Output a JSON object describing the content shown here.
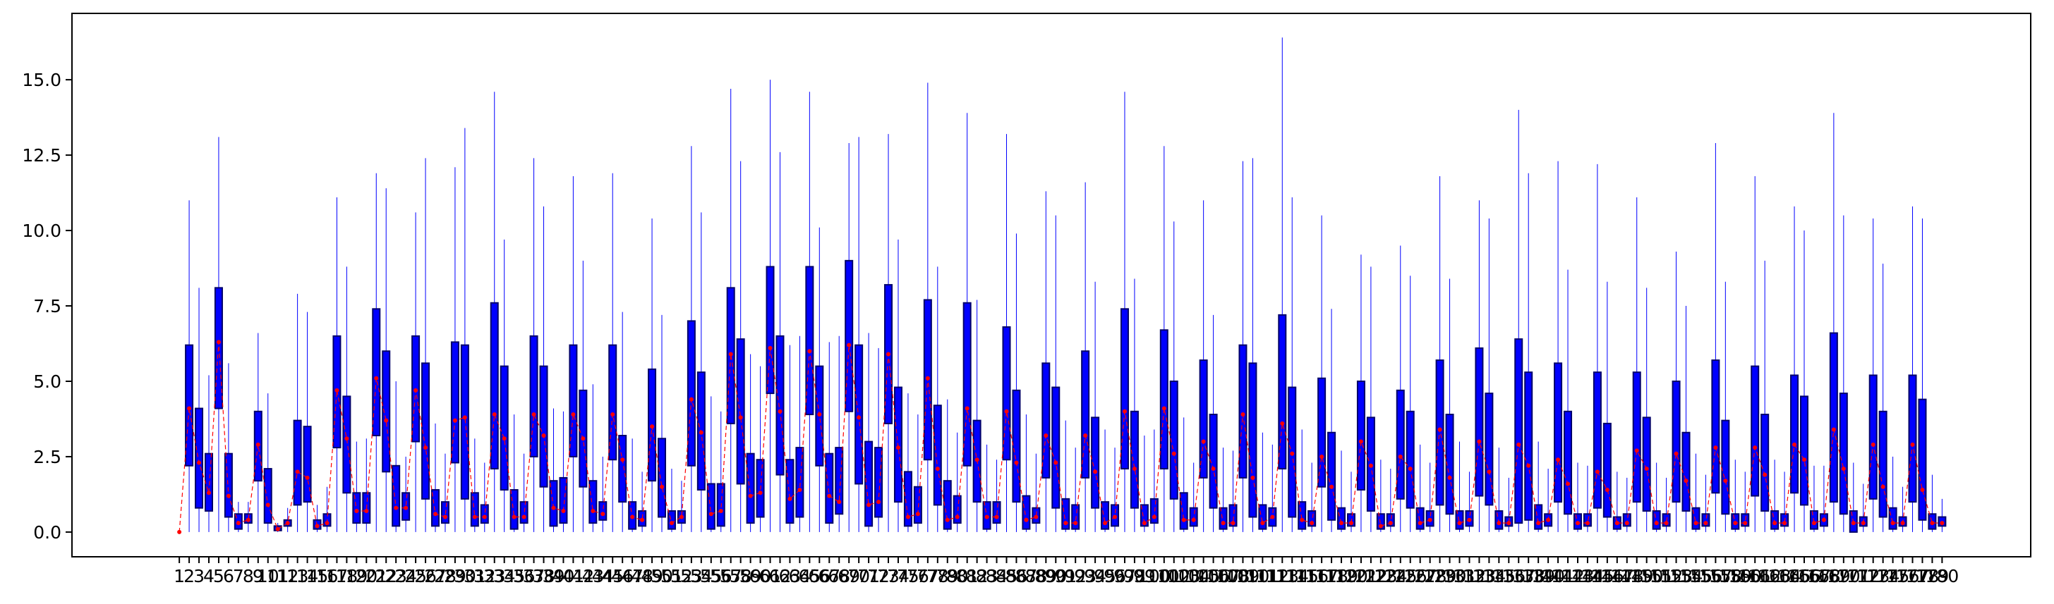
{
  "chart_data": {
    "type": "box",
    "x": [
      1,
      2,
      3,
      4,
      5,
      6,
      7,
      8,
      9,
      10,
      11,
      12,
      13,
      14,
      15,
      16,
      17,
      18,
      19,
      20,
      21,
      22,
      23,
      24,
      25,
      26,
      27,
      28,
      29,
      30,
      31,
      32,
      33,
      34,
      35,
      36,
      37,
      38,
      39,
      40,
      41,
      42,
      43,
      44,
      45,
      46,
      47,
      48,
      49,
      50,
      51,
      52,
      53,
      54,
      55,
      56,
      57,
      58,
      59,
      60,
      61,
      62,
      63,
      64,
      65,
      66,
      67,
      68,
      69,
      70,
      71,
      72,
      73,
      74,
      75,
      76,
      77,
      78,
      79,
      80,
      81,
      82,
      83,
      84,
      85,
      86,
      87,
      88,
      89,
      90,
      91,
      92,
      93,
      94,
      95,
      96,
      97,
      98,
      99,
      100,
      101,
      102,
      103,
      104,
      105,
      106,
      107,
      108,
      109,
      110,
      111,
      112,
      113,
      114,
      115,
      116,
      117,
      118,
      119,
      120,
      121,
      122,
      123,
      124,
      125,
      126,
      127,
      128,
      129,
      130,
      131,
      132,
      133,
      134,
      135,
      136,
      137,
      138,
      139,
      140,
      141,
      142,
      143,
      144,
      145,
      146,
      147,
      148,
      149,
      150,
      151,
      152,
      153,
      154,
      155,
      156,
      157,
      158,
      159,
      160,
      161,
      162,
      163,
      164,
      165,
      166,
      167,
      168,
      169,
      170,
      171,
      172,
      173,
      174,
      175,
      176,
      177,
      178,
      179,
      180
    ],
    "whislo": [
      0,
      0,
      0,
      0,
      0,
      0,
      0,
      0,
      0,
      0,
      0,
      0,
      0,
      0,
      0,
      0,
      0,
      0,
      0,
      0,
      0,
      0,
      0,
      0,
      0,
      0,
      0,
      0,
      0,
      0,
      0,
      0,
      0,
      0,
      0,
      0,
      0,
      0,
      0,
      0,
      0,
      0,
      0,
      0,
      0,
      0,
      0,
      0,
      0,
      0,
      0,
      0,
      0,
      0,
      0,
      0,
      0,
      0,
      0,
      0,
      0,
      0,
      0,
      0,
      0,
      0,
      0,
      0,
      0,
      0,
      0,
      0,
      0,
      0,
      0,
      0,
      0,
      0,
      0,
      0,
      0,
      0,
      0,
      0,
      0,
      0,
      0,
      0,
      0,
      0,
      0,
      0,
      0,
      0,
      0,
      0,
      0,
      0,
      0,
      0,
      0,
      0,
      0,
      0,
      0,
      0,
      0,
      0,
      0,
      0,
      0,
      0,
      0,
      0,
      0,
      0,
      0,
      0,
      0,
      0,
      0,
      0,
      0,
      0,
      0,
      0,
      0,
      0,
      0,
      0,
      0,
      0,
      0,
      0,
      0,
      0,
      0,
      0,
      0,
      0,
      0,
      0,
      0,
      0,
      0,
      0,
      0,
      0,
      0,
      0,
      0,
      0,
      0,
      0,
      0,
      0,
      0,
      0,
      0,
      0,
      0,
      0,
      0,
      0,
      0,
      0,
      0,
      0,
      0,
      0,
      0,
      0,
      0,
      0,
      0,
      0,
      0,
      0,
      0,
      0
    ],
    "q1": [
      0,
      2.2,
      0.8,
      0.7,
      4.1,
      0.5,
      0.1,
      0.3,
      1.7,
      0.3,
      0.05,
      0.2,
      0.9,
      1.0,
      0.1,
      0.2,
      2.8,
      1.3,
      0.3,
      0.3,
      3.2,
      2.0,
      0.2,
      0.4,
      3.0,
      1.1,
      0.2,
      0.3,
      2.3,
      1.1,
      0.2,
      0.3,
      2.1,
      1.4,
      0.1,
      0.3,
      2.5,
      1.5,
      0.2,
      0.3,
      2.5,
      1.5,
      0.3,
      0.4,
      2.4,
      1.0,
      0.1,
      0.2,
      1.7,
      0.5,
      0.1,
      0.3,
      2.2,
      1.4,
      0.1,
      0.2,
      3.6,
      1.6,
      0.3,
      0.5,
      4.6,
      1.9,
      0.3,
      0.5,
      3.9,
      2.2,
      0.3,
      0.6,
      4.0,
      1.6,
      0.2,
      0.5,
      3.6,
      1.0,
      0.2,
      0.3,
      2.4,
      0.9,
      0.1,
      0.3,
      2.2,
      1.0,
      0.1,
      0.3,
      2.4,
      1.0,
      0.1,
      0.3,
      1.8,
      0.8,
      0.1,
      0.1,
      1.8,
      0.8,
      0.1,
      0.2,
      2.1,
      0.8,
      0.2,
      0.3,
      2.1,
      1.1,
      0.1,
      0.2,
      1.8,
      0.8,
      0.1,
      0.2,
      1.8,
      0.5,
      0.1,
      0.2,
      2.1,
      0.5,
      0.1,
      0.2,
      1.5,
      0.4,
      0.1,
      0.2,
      1.4,
      0.7,
      0.1,
      0.2,
      1.1,
      0.8,
      0.1,
      0.2,
      0.9,
      0.6,
      0.1,
      0.2,
      1.2,
      0.9,
      0.1,
      0.2,
      0.3,
      0.4,
      0.1,
      0.2,
      1.0,
      0.6,
      0.1,
      0.2,
      0.8,
      0.5,
      0.1,
      0.2,
      1.0,
      0.7,
      0.1,
      0.2,
      1.0,
      0.7,
      0.1,
      0.2,
      1.3,
      0.6,
      0.1,
      0.2,
      1.2,
      0.7,
      0.1,
      0.2,
      1.3,
      0.9,
      0.1,
      0.2,
      1.0,
      0.6,
      0.0,
      0.2,
      1.1,
      0.5,
      0.1,
      0.2,
      1.0,
      0.4,
      0.1,
      0.2
    ],
    "med": [
      0,
      4.1,
      2.3,
      1.3,
      6.3,
      1.2,
      0.3,
      0.4,
      2.9,
      0.9,
      0.1,
      0.3,
      2.0,
      1.8,
      0.2,
      0.3,
      4.7,
      3.1,
      0.7,
      0.7,
      5.1,
      3.7,
      0.8,
      0.8,
      4.7,
      2.8,
      0.6,
      0.5,
      3.7,
      3.8,
      0.5,
      0.5,
      3.9,
      3.1,
      0.5,
      0.5,
      3.9,
      3.2,
      0.8,
      0.7,
      3.9,
      3.1,
      0.7,
      0.6,
      3.9,
      2.4,
      0.5,
      0.4,
      3.5,
      1.5,
      0.3,
      0.5,
      4.4,
      3.3,
      0.6,
      0.7,
      5.9,
      3.8,
      1.2,
      1.3,
      6.1,
      4.0,
      1.1,
      1.4,
      6.0,
      3.9,
      1.2,
      1.0,
      6.2,
      3.8,
      0.9,
      1.0,
      5.9,
      2.8,
      0.5,
      0.6,
      5.1,
      2.1,
      0.4,
      0.5,
      4.1,
      2.4,
      0.5,
      0.5,
      4.0,
      2.3,
      0.4,
      0.5,
      3.2,
      2.3,
      0.3,
      0.3,
      3.2,
      2.0,
      0.3,
      0.5,
      4.0,
      2.1,
      0.3,
      0.5,
      4.1,
      2.6,
      0.4,
      0.4,
      3.0,
      2.1,
      0.3,
      0.3,
      3.9,
      1.8,
      0.3,
      0.5,
      3.6,
      2.6,
      0.4,
      0.3,
      2.5,
      1.5,
      0.3,
      0.3,
      3.0,
      2.2,
      0.2,
      0.3,
      2.5,
      2.1,
      0.3,
      0.4,
      3.4,
      1.8,
      0.3,
      0.4,
      3.0,
      2.0,
      0.3,
      0.3,
      2.9,
      2.2,
      0.3,
      0.4,
      2.4,
      1.6,
      0.3,
      0.3,
      2.0,
      1.4,
      0.3,
      0.3,
      2.7,
      2.1,
      0.3,
      0.3,
      2.6,
      1.7,
      0.3,
      0.3,
      2.8,
      1.7,
      0.3,
      0.3,
      2.8,
      1.9,
      0.3,
      0.3,
      2.9,
      2.4,
      0.3,
      0.4,
      3.4,
      2.1,
      0.3,
      0.3,
      2.9,
      1.5,
      0.3,
      0.3,
      2.9,
      1.4,
      0.3,
      0.3
    ],
    "q3": [
      0,
      6.2,
      4.1,
      2.6,
      8.1,
      2.6,
      0.6,
      0.6,
      4.0,
      2.1,
      0.2,
      0.4,
      3.7,
      3.5,
      0.4,
      0.6,
      6.5,
      4.5,
      1.3,
      1.3,
      7.4,
      6.0,
      2.2,
      1.3,
      6.5,
      5.6,
      1.4,
      1.0,
      6.3,
      6.2,
      1.3,
      0.9,
      7.6,
      5.5,
      1.4,
      1.0,
      6.5,
      5.5,
      1.7,
      1.8,
      6.2,
      4.7,
      1.7,
      1.0,
      6.2,
      3.2,
      1.0,
      0.7,
      5.4,
      3.1,
      0.7,
      0.7,
      7.0,
      5.3,
      1.6,
      1.6,
      8.1,
      6.4,
      2.6,
      2.4,
      8.8,
      6.5,
      2.4,
      2.8,
      8.8,
      5.5,
      2.6,
      2.8,
      9.0,
      6.2,
      3.0,
      2.8,
      8.2,
      4.8,
      2.0,
      1.5,
      7.7,
      4.2,
      1.7,
      1.2,
      7.6,
      3.7,
      1.0,
      1.0,
      6.8,
      4.7,
      1.2,
      0.8,
      5.6,
      4.8,
      1.1,
      0.9,
      6.0,
      3.8,
      1.0,
      0.9,
      7.4,
      4.0,
      0.9,
      1.1,
      6.7,
      5.0,
      1.3,
      0.8,
      5.7,
      3.9,
      0.8,
      0.9,
      6.2,
      5.6,
      0.9,
      0.8,
      7.2,
      4.8,
      1.0,
      0.7,
      5.1,
      3.3,
      0.8,
      0.6,
      5.0,
      3.8,
      0.6,
      0.6,
      4.7,
      4.0,
      0.8,
      0.7,
      5.7,
      3.9,
      0.7,
      0.7,
      6.1,
      4.6,
      0.7,
      0.5,
      6.4,
      5.3,
      0.9,
      0.6,
      5.6,
      4.0,
      0.6,
      0.6,
      5.3,
      3.6,
      0.5,
      0.6,
      5.3,
      3.8,
      0.7,
      0.6,
      5.0,
      3.3,
      0.8,
      0.6,
      5.7,
      3.7,
      0.6,
      0.6,
      5.5,
      3.9,
      0.7,
      0.6,
      5.2,
      4.5,
      0.7,
      0.6,
      6.6,
      4.6,
      0.7,
      0.5,
      5.2,
      4.0,
      0.8,
      0.5,
      5.2,
      4.4,
      0.6,
      0.5
    ],
    "whishi": [
      0,
      11.0,
      8.1,
      5.2,
      13.1,
      5.6,
      1.0,
      1.0,
      6.6,
      4.6,
      0.3,
      0.8,
      7.9,
      7.3,
      0.9,
      1.5,
      11.1,
      8.8,
      3.0,
      3.1,
      11.9,
      11.4,
      5.0,
      2.5,
      10.6,
      12.4,
      3.6,
      2.6,
      12.1,
      13.4,
      3.1,
      2.3,
      14.6,
      9.7,
      3.9,
      2.6,
      12.4,
      10.8,
      4.1,
      4.0,
      11.8,
      9.0,
      4.9,
      2.5,
      11.9,
      7.3,
      3.1,
      2.0,
      10.4,
      7.2,
      2.1,
      1.7,
      12.8,
      10.6,
      4.5,
      4.0,
      14.7,
      12.3,
      5.9,
      5.5,
      15.0,
      12.6,
      6.2,
      6.5,
      14.6,
      10.1,
      6.3,
      6.5,
      12.9,
      13.1,
      6.6,
      6.1,
      13.2,
      9.7,
      4.6,
      3.9,
      14.9,
      8.8,
      4.4,
      3.3,
      13.9,
      7.7,
      2.9,
      2.4,
      13.2,
      9.9,
      3.9,
      2.6,
      11.3,
      10.5,
      3.7,
      2.8,
      11.6,
      8.3,
      3.4,
      2.8,
      14.6,
      8.4,
      3.2,
      3.4,
      12.8,
      10.3,
      3.8,
      2.3,
      11.0,
      7.2,
      2.8,
      2.7,
      12.3,
      12.4,
      3.3,
      2.9,
      16.4,
      11.1,
      3.4,
      2.3,
      10.5,
      7.4,
      2.7,
      2.0,
      9.2,
      8.8,
      2.4,
      2.1,
      9.5,
      8.5,
      2.9,
      2.3,
      11.8,
      8.4,
      3.0,
      2.0,
      11.0,
      10.4,
      2.8,
      1.8,
      14.0,
      11.9,
      3.0,
      2.1,
      12.3,
      8.7,
      2.3,
      2.2,
      12.2,
      8.3,
      2.0,
      1.8,
      11.1,
      8.1,
      2.3,
      1.8,
      9.3,
      7.5,
      2.6,
      1.9,
      12.9,
      8.3,
      2.4,
      2.0,
      11.8,
      9.0,
      2.4,
      2.0,
      10.8,
      10.0,
      2.2,
      2.2,
      13.9,
      10.5,
      2.3,
      1.6,
      10.4,
      8.9,
      2.5,
      1.5,
      10.8,
      10.4,
      1.9,
      1.1
    ],
    "box_color": "#0000ff",
    "median_color": "#ff0000",
    "xlim": [
      -9.9,
      189.0
    ],
    "ylim": [
      -0.82,
      17.2
    ],
    "yticks": [
      {
        "value": 0,
        "label": "0.0"
      },
      2.5,
      {
        "value": 5,
        "label": "5.0"
      },
      7.5,
      {
        "value": 10,
        "label": "10.0"
      },
      12.5,
      {
        "value": 15,
        "label": "15.0"
      }
    ]
  }
}
